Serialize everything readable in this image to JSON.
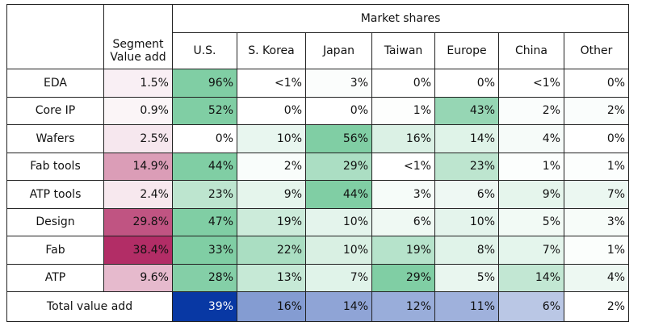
{
  "table": {
    "group_header": "Market shares",
    "columns": [
      "Segment\nValue add",
      "U.S.",
      "S. Korea",
      "Japan",
      "Taiwan",
      "Europe",
      "China",
      "Other"
    ],
    "rows": [
      [
        "EDA",
        "1.5%",
        "96%",
        "<1%",
        "3%",
        "0%",
        "0%",
        "<1%",
        "0%"
      ],
      [
        "Core IP",
        "0.9%",
        "52%",
        "0%",
        "0%",
        "1%",
        "43%",
        "2%",
        "2%"
      ],
      [
        "Wafers",
        "2.5%",
        "0%",
        "10%",
        "56%",
        "16%",
        "14%",
        "4%",
        "0%"
      ],
      [
        "Fab tools",
        "14.9%",
        "44%",
        "2%",
        "29%",
        "<1%",
        "23%",
        "1%",
        "1%"
      ],
      [
        "ATP tools",
        "2.4%",
        "23%",
        "9%",
        "44%",
        "3%",
        "6%",
        "9%",
        "7%"
      ],
      [
        "Design",
        "29.8%",
        "47%",
        "19%",
        "10%",
        "6%",
        "10%",
        "5%",
        "3%"
      ],
      [
        "Fab",
        "38.4%",
        "33%",
        "22%",
        "10%",
        "19%",
        "8%",
        "7%",
        "1%"
      ],
      [
        "ATP",
        "9.6%",
        "28%",
        "13%",
        "7%",
        "29%",
        "5%",
        "14%",
        "4%"
      ]
    ],
    "total": {
      "label": "Total value add",
      "values": [
        "39%",
        "16%",
        "14%",
        "12%",
        "11%",
        "6%",
        "2%"
      ]
    },
    "colors": {
      "segment": "#b22d66",
      "share": "#72c89a",
      "total": "#0838a4"
    }
  }
}
